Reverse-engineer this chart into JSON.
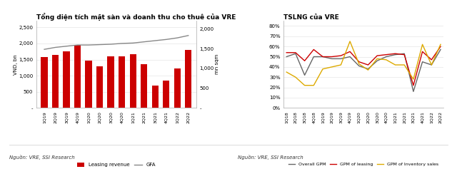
{
  "chart1_title": "Tổng diện tích mặt sàn và doanh thu cho thuê của VRE",
  "chart2_title": "TSLNG của VRE",
  "source_text": "Nguồn: VRE, SSI Research",
  "bar_categories": [
    "1Q19",
    "2Q19",
    "3Q19",
    "4Q19",
    "1Q20",
    "2Q20",
    "3Q20",
    "4Q20",
    "1Q21",
    "2Q21",
    "3Q21",
    "4Q21",
    "1Q22",
    "2Q22"
  ],
  "bar_values": [
    1580,
    1650,
    1760,
    1950,
    1460,
    1300,
    1590,
    1610,
    1670,
    1350,
    700,
    850,
    1230,
    1790
  ],
  "gfa_values": [
    1480,
    1530,
    1560,
    1590,
    1590,
    1600,
    1610,
    1630,
    1640,
    1670,
    1700,
    1730,
    1770,
    1830
  ],
  "bar_color": "#cc0000",
  "gfa_color": "#888888",
  "ylabel_left": "VND, bn",
  "ylabel_right": "mn sqm",
  "ylim_left": [
    0,
    2700
  ],
  "ylim_right": [
    0,
    2200
  ],
  "yticks_left": [
    0,
    500,
    1000,
    1500,
    2000,
    2500
  ],
  "ytick_labels_left": [
    "-",
    "500",
    "1,000",
    "1,500",
    "2,000",
    "2,500"
  ],
  "yticks_right": [
    0,
    500,
    1000,
    1500,
    2000
  ],
  "ytick_labels_right": [
    "-",
    "500",
    "1,000",
    "1,500",
    "2,000"
  ],
  "line_categories": [
    "1Q18",
    "2Q18",
    "3Q18",
    "4Q18",
    "1Q19",
    "2Q19",
    "3Q19",
    "4Q19",
    "1Q20",
    "2Q20",
    "3Q20",
    "4Q20",
    "1Q21",
    "2Q21",
    "3Q21",
    "4Q21",
    "1Q22",
    "2Q22"
  ],
  "overall_gpm": [
    0.5,
    0.53,
    0.32,
    0.5,
    0.5,
    0.48,
    0.48,
    0.5,
    0.41,
    0.38,
    0.46,
    0.5,
    0.52,
    0.53,
    0.16,
    0.45,
    0.42,
    0.57
  ],
  "gpm_leasing": [
    0.54,
    0.54,
    0.46,
    0.57,
    0.5,
    0.5,
    0.51,
    0.55,
    0.45,
    0.42,
    0.51,
    0.52,
    0.53,
    0.52,
    0.22,
    0.55,
    0.47,
    0.6
  ],
  "gpm_inventory": [
    0.35,
    0.3,
    0.22,
    0.22,
    0.38,
    0.4,
    0.42,
    0.65,
    0.43,
    0.37,
    0.48,
    0.47,
    0.42,
    0.42,
    0.28,
    0.62,
    0.42,
    0.62
  ],
  "overall_color": "#666666",
  "leasing_color": "#cc0000",
  "inventory_color": "#ddaa00",
  "ylim2": [
    0,
    0.85
  ],
  "yticks2": [
    0.0,
    0.1,
    0.2,
    0.3,
    0.4,
    0.5,
    0.6,
    0.7,
    0.8
  ],
  "ytick_labels2": [
    "0%",
    "10%",
    "20%",
    "30%",
    "40%",
    "50%",
    "60%",
    "70%",
    "80%"
  ]
}
